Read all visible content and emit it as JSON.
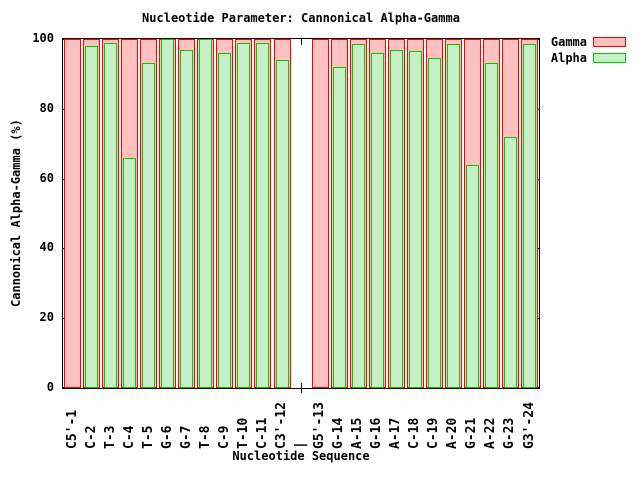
{
  "title": "Nucleotide Parameter: Cannonical Alpha-Gamma",
  "x_axis_label": "Nucleotide Sequence",
  "y_axis_label": "Cannonical Alpha-Gamma (%)",
  "legend": {
    "position": "top-right-outside",
    "entries": [
      {
        "label": "Gamma",
        "fill": "#ffc0c0",
        "border": "#ff0000"
      },
      {
        "label": "Alpha",
        "fill": "#c8f0c8",
        "border": "#00cc00"
      }
    ]
  },
  "colors": {
    "gamma_fill": "#ffc0c0",
    "gamma_border": "#ff0000",
    "alpha_fill": "#c8f0c8",
    "alpha_border": "#00cc00",
    "axis": "#000000",
    "background": "#ffffff"
  },
  "chart_data": {
    "type": "bar",
    "title": "Nucleotide Parameter: Cannonical Alpha-Gamma",
    "xlabel": "Nucleotide Sequence",
    "ylabel": "Cannonical Alpha-Gamma (%)",
    "ylim": [
      0,
      100
    ],
    "yticks": [
      0,
      20,
      40,
      60,
      80,
      100
    ],
    "grid": false,
    "legend_position": "top-right-outside",
    "separator_index": 12,
    "categories": [
      "C5'-1",
      "C-2",
      "T-3",
      "C-4",
      "T-5",
      "G-6",
      "G-7",
      "T-8",
      "C-9",
      "T-10",
      "C-11",
      "C3'-12",
      "|",
      "G5'-13",
      "G-14",
      "A-15",
      "G-16",
      "A-17",
      "C-18",
      "C-19",
      "A-20",
      "G-21",
      "A-22",
      "G-23",
      "G3'-24"
    ],
    "series": [
      {
        "name": "Gamma",
        "values": [
          100,
          100,
          100,
          100,
          100,
          100,
          100,
          100,
          100,
          100,
          100,
          100,
          null,
          100,
          100,
          100,
          100,
          100,
          100,
          100,
          100,
          100,
          100,
          100,
          100
        ]
      },
      {
        "name": "Alpha",
        "values": [
          0,
          98,
          99,
          66,
          93,
          100,
          97,
          100,
          96,
          99,
          99,
          94,
          null,
          0,
          92,
          98.5,
          96,
          97,
          96.5,
          94.5,
          98.5,
          64,
          93,
          72,
          98.5
        ]
      }
    ]
  }
}
